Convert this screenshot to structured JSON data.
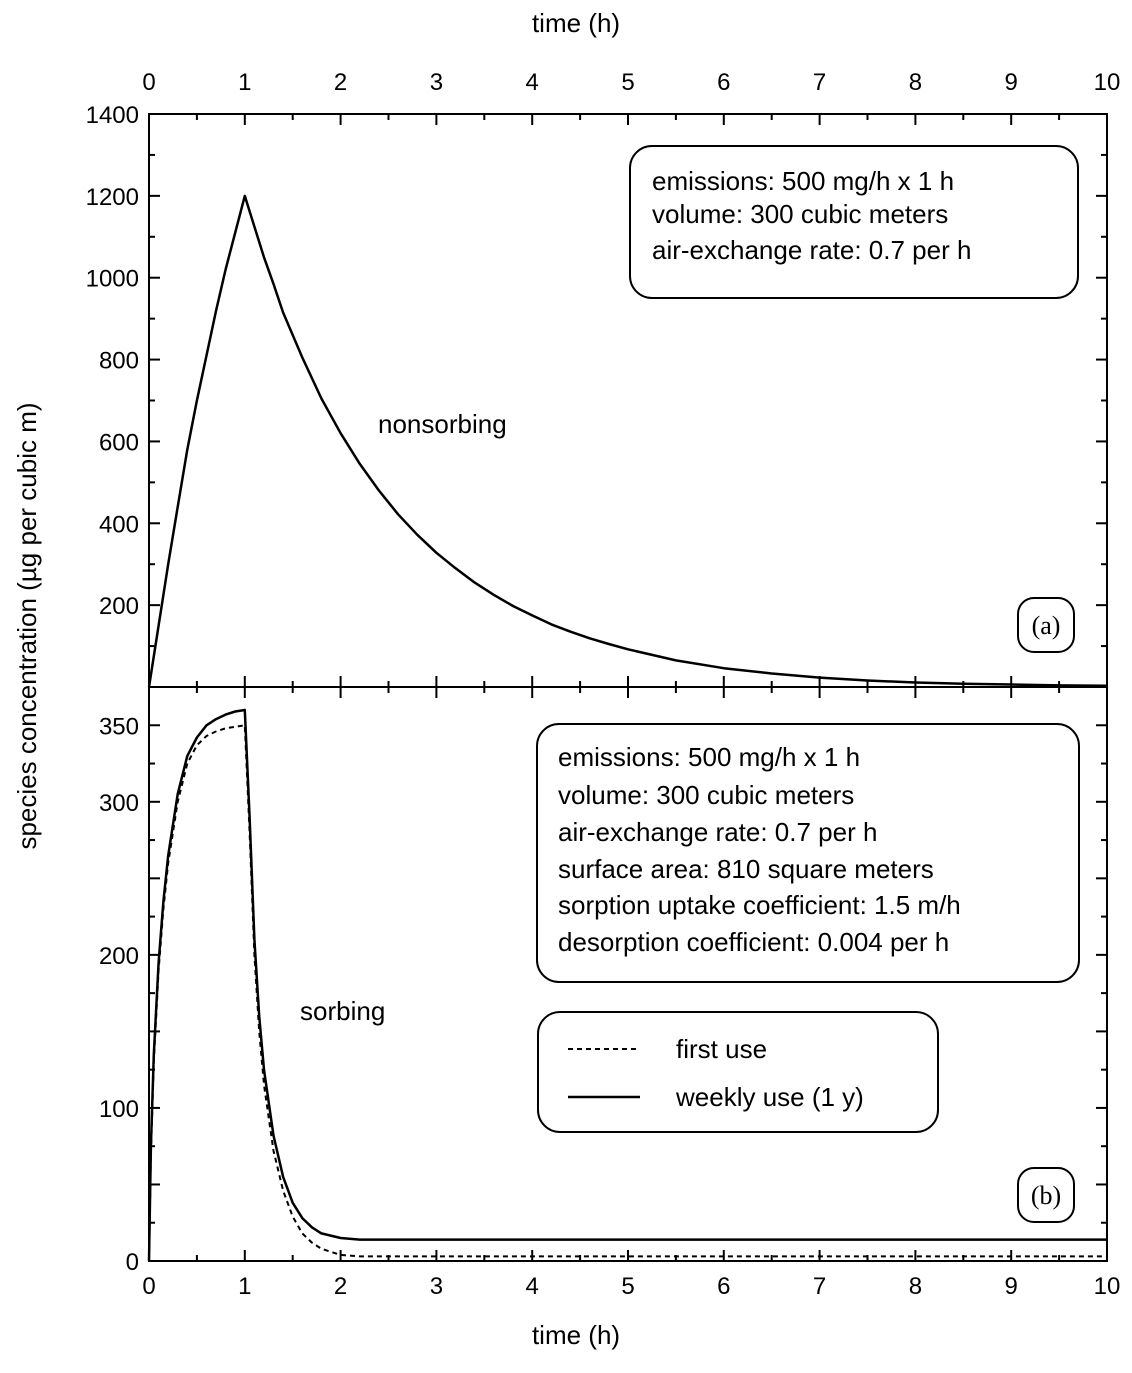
{
  "chart_data": [
    {
      "panel": "top",
      "type": "line",
      "xlabel_top": "time (h)",
      "ylabel": "species concentration (µg per cubic m)",
      "xlim": [
        0,
        10
      ],
      "ylim": [
        0,
        1400
      ],
      "x_ticks": [
        "0",
        "1",
        "2",
        "3",
        "4",
        "5",
        "6",
        "7",
        "8",
        "9",
        "10"
      ],
      "y_ticks": [
        "200",
        "400",
        "600",
        "800",
        "1000",
        "1200",
        "1400"
      ],
      "y_tick_values": [
        200,
        400,
        600,
        800,
        1000,
        1200,
        1400
      ],
      "info_box": [
        "emissions: 500 mg/h x 1 h",
        "volume: 300 cubic meters",
        "air-exchange rate: 0.7 per h"
      ],
      "annotation": "nonsorbing",
      "panel_tag": "(a)",
      "series": [
        {
          "style": "solid",
          "x": [
            0,
            0.1,
            0.2,
            0.3,
            0.4,
            0.5,
            0.6,
            0.7,
            0.8,
            0.9,
            1.0,
            1.1,
            1.2,
            1.3,
            1.4,
            1.5,
            1.6,
            1.8,
            2.0,
            2.2,
            2.4,
            2.6,
            2.8,
            3.0,
            3.2,
            3.4,
            3.6,
            3.8,
            4.0,
            4.2,
            4.4,
            4.6,
            4.8,
            5.0,
            5.5,
            6.0,
            6.5,
            7.0,
            7.5,
            8.0,
            8.5,
            9.0,
            9.5,
            10.0
          ],
          "y": [
            0,
            150,
            300,
            440,
            580,
            700,
            810,
            920,
            1020,
            1110,
            1200,
            1125,
            1050,
            985,
            915,
            860,
            805,
            705,
            620,
            545,
            480,
            422,
            372,
            328,
            290,
            255,
            225,
            198,
            175,
            153,
            135,
            119,
            105,
            92,
            65,
            46,
            33,
            23,
            16,
            11,
            8,
            6,
            4,
            3
          ]
        }
      ]
    },
    {
      "panel": "bottom",
      "type": "line",
      "xlabel": "time (h)",
      "xlim": [
        0,
        10
      ],
      "ylim": [
        0,
        375
      ],
      "x_ticks": [
        "0",
        "1",
        "2",
        "3",
        "4",
        "5",
        "6",
        "7",
        "8",
        "9",
        "10"
      ],
      "y_ticks": [
        "0",
        "100",
        "200",
        "300",
        "350"
      ],
      "y_tick_values": [
        0,
        100,
        200,
        300,
        350
      ],
      "info_box": [
        "emissions: 500 mg/h x 1 h",
        "volume: 300 cubic meters",
        "air-exchange rate: 0.7 per h",
        "surface area: 810 square meters",
        "sorption uptake coefficient: 1.5 m/h",
        "desorption coefficient: 0.004 per h"
      ],
      "annotation": "sorbing",
      "panel_tag": "(b)",
      "legend": [
        {
          "label": "first use",
          "style": "dashed"
        },
        {
          "label": "weekly use (1 y)",
          "style": "solid"
        }
      ],
      "series": [
        {
          "name": "first use",
          "style": "dashed",
          "x": [
            0,
            0.02,
            0.05,
            0.1,
            0.15,
            0.2,
            0.3,
            0.4,
            0.5,
            0.6,
            0.7,
            0.8,
            0.9,
            1.0,
            1.05,
            1.1,
            1.15,
            1.2,
            1.3,
            1.4,
            1.5,
            1.6,
            1.7,
            1.8,
            2.0,
            2.2,
            3.0,
            5.0,
            7.0,
            10.0
          ],
          "y": [
            0,
            70,
            130,
            190,
            230,
            260,
            300,
            325,
            337,
            343,
            346,
            348,
            349,
            350,
            280,
            200,
            150,
            115,
            72,
            46,
            29,
            18,
            12,
            8,
            4,
            3,
            3,
            3,
            3,
            3
          ]
        },
        {
          "name": "weekly use (1 y)",
          "style": "solid",
          "x": [
            0,
            0.02,
            0.05,
            0.1,
            0.15,
            0.2,
            0.3,
            0.4,
            0.5,
            0.6,
            0.7,
            0.8,
            0.9,
            1.0,
            1.05,
            1.1,
            1.15,
            1.2,
            1.3,
            1.4,
            1.5,
            1.6,
            1.7,
            1.8,
            2.0,
            2.2,
            3.0,
            5.0,
            7.0,
            10.0
          ],
          "y": [
            0,
            75,
            135,
            195,
            235,
            265,
            305,
            330,
            342,
            350,
            354,
            357,
            359,
            360,
            290,
            210,
            160,
            125,
            82,
            55,
            38,
            28,
            22,
            18,
            15,
            14,
            14,
            14,
            14,
            14
          ]
        }
      ]
    }
  ]
}
